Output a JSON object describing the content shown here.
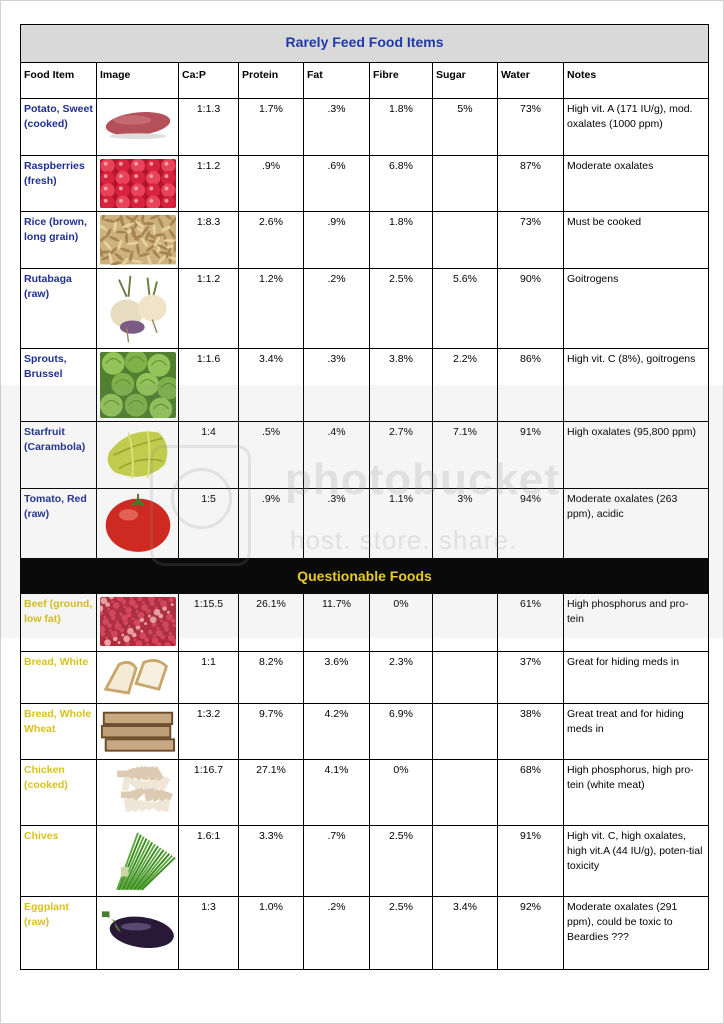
{
  "sections": {
    "rare_title": "Rarely Feed Food Items",
    "questionable_title": "Questionable Foods"
  },
  "columns": [
    "Food Item",
    "Image",
    "Ca:P",
    "Protein",
    "Fat",
    "Fibre",
    "Sugar",
    "Water",
    "Notes"
  ],
  "colors": {
    "rare_name": "#1f2f8f",
    "questionable_name": "#d8c21a",
    "rare_header_bg": "#d9d9d9",
    "questionable_header_bg": "#000000"
  },
  "rare": [
    {
      "name": "Potato, Sweet (cooked)",
      "image": "sweet-potato",
      "cap": "1:1.3",
      "protein": "1.7%",
      "fat": ".3%",
      "fibre": "1.8%",
      "sugar": "5%",
      "water": "73%",
      "notes": "High vit. A (171 IU/g), mod. oxalates (1000 ppm)"
    },
    {
      "name": "Raspberries (fresh)",
      "image": "raspberries",
      "cap": "1:1.2",
      "protein": ".9%",
      "fat": ".6%",
      "fibre": "6.8%",
      "sugar": "",
      "water": "87%",
      "notes": "Moderate oxalates"
    },
    {
      "name": "Rice (brown, long grain)",
      "image": "brown-rice",
      "cap": "1:8.3",
      "protein": "2.6%",
      "fat": ".9%",
      "fibre": "1.8%",
      "sugar": "",
      "water": "73%",
      "notes": "Must be cooked"
    },
    {
      "name": "Rutabaga (raw)",
      "image": "rutabaga",
      "cap": "1:1.2",
      "protein": "1.2%",
      "fat": ".2%",
      "fibre": "2.5%",
      "sugar": "5.6%",
      "water": "90%",
      "notes": "Goitrogens"
    },
    {
      "name": "Sprouts, Brussel",
      "image": "brussels-sprouts",
      "cap": "1:1.6",
      "protein": "3.4%",
      "fat": ".3%",
      "fibre": "3.8%",
      "sugar": "2.2%",
      "water": "86%",
      "notes": "High vit. C (8%), goitrogens"
    },
    {
      "name": "Starfruit (Carambola)",
      "image": "starfruit",
      "cap": "1:4",
      "protein": ".5%",
      "fat": ".4%",
      "fibre": "2.7%",
      "sugar": "7.1%",
      "water": "91%",
      "notes": "High oxalates (95,800 ppm)"
    },
    {
      "name": "Tomato, Red (raw)",
      "image": "tomato",
      "cap": "1:5",
      "protein": ".9%",
      "fat": ".3%",
      "fibre": "1.1%",
      "sugar": "3%",
      "water": "94%",
      "notes": "Moderate oxalates (263 ppm), acidic"
    }
  ],
  "questionable": [
    {
      "name": "Beef (ground, low fat)",
      "image": "ground-beef",
      "cap": "1:15.5",
      "protein": "26.1%",
      "fat": "11.7%",
      "fibre": "0%",
      "sugar": "",
      "water": "61%",
      "notes": "High phosphorus and pro-tein"
    },
    {
      "name": "Bread, White",
      "image": "white-bread",
      "cap": "1:1",
      "protein": "8.2%",
      "fat": "3.6%",
      "fibre": "2.3%",
      "sugar": "",
      "water": "37%",
      "notes": "Great for hiding meds in"
    },
    {
      "name": "Bread, Whole Wheat",
      "image": "wheat-bread",
      "cap": "1:3.2",
      "protein": "9.7%",
      "fat": "4.2%",
      "fibre": "6.9%",
      "sugar": "",
      "water": "38%",
      "notes": "Great treat and for hiding meds in"
    },
    {
      "name": "Chicken (cooked)",
      "image": "chicken",
      "cap": "1:16.7",
      "protein": "27.1%",
      "fat": "4.1%",
      "fibre": "0%",
      "sugar": "",
      "water": "68%",
      "notes": "High phosphorus, high pro-tein (white meat)"
    },
    {
      "name": "Chives",
      "image": "chives",
      "cap": "1.6:1",
      "protein": "3.3%",
      "fat": ".7%",
      "fibre": "2.5%",
      "sugar": "",
      "water": "91%",
      "notes": "High vit. C, high oxalates, high vit.A (44 IU/g), poten-tial toxicity"
    },
    {
      "name": "Eggplant (raw)",
      "image": "eggplant",
      "cap": "1:3",
      "protein": "1.0%",
      "fat": ".2%",
      "fibre": "2.5%",
      "sugar": "3.4%",
      "water": "92%",
      "notes": "Moderate oxalates (291 ppm), could be toxic to Beardies ???"
    }
  ],
  "watermark": {
    "line1": "photobucket",
    "line2": "host. store. share."
  }
}
